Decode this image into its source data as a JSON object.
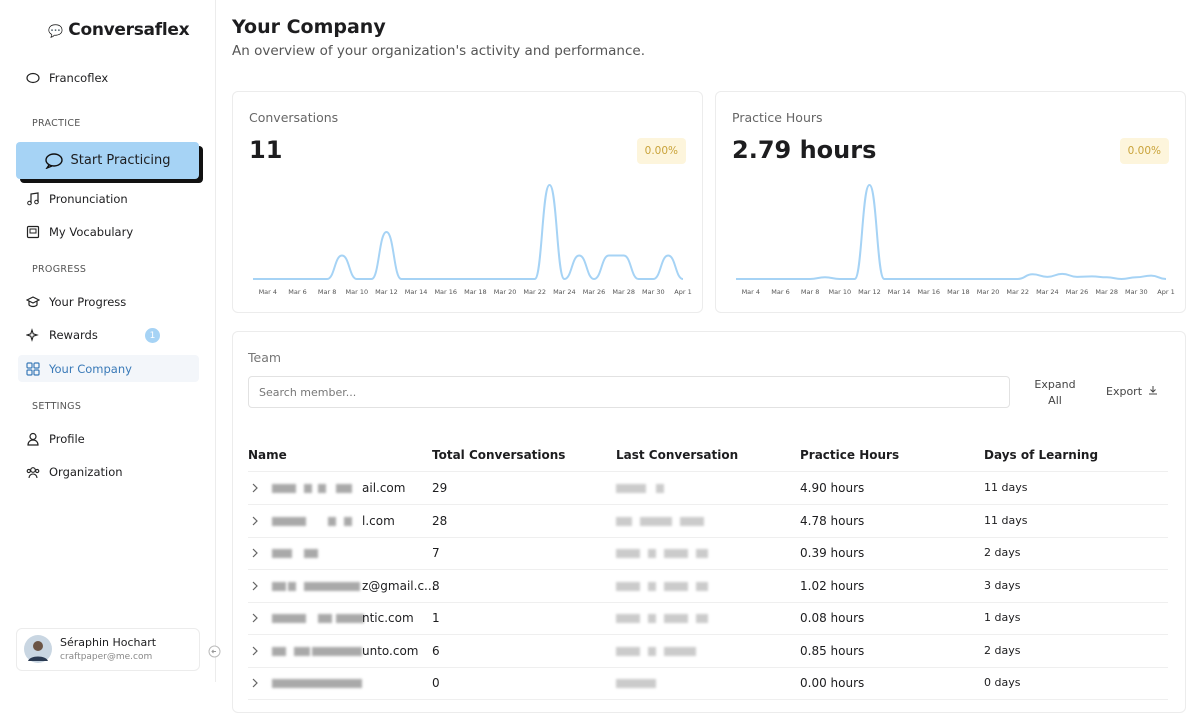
{
  "sidebar": {
    "brand": "Conversaflex",
    "workspace": "Francoflex",
    "practice_title": "PRACTICE",
    "start_button": "Start Practicing",
    "pronunciation": "Pronunciation",
    "vocabulary": "My Vocabulary",
    "progress_title": "PROGRESS",
    "your_progress": "Your Progress",
    "rewards": "Rewards",
    "rewards_badge": "1",
    "company": "Your Company",
    "settings_title": "SETTINGS",
    "profile": "Profile",
    "organization": "Organization",
    "user": {
      "name": "Séraphin Hochart",
      "email": "craftpaper@me.com"
    }
  },
  "header": {
    "title": "Your Company",
    "subtitle": "An overview of your organization's activity and performance."
  },
  "chart_data": [
    {
      "type": "line",
      "title": "Conversations",
      "total": "11",
      "change": "0.00%",
      "color": "#a6d3f5",
      "categories": [
        null,
        "Mar 4",
        null,
        "Mar 6",
        null,
        "Mar 8",
        null,
        "Mar 10",
        null,
        "Mar 12",
        null,
        "Mar 14",
        null,
        "Mar 16",
        null,
        "Mar 18",
        null,
        "Mar 20",
        null,
        "Mar 22",
        null,
        "Mar 24",
        null,
        "Mar 26",
        null,
        "Mar 28",
        null,
        "Mar 30",
        null,
        "Apr 1"
      ],
      "values": [
        0,
        0,
        0,
        0,
        0,
        0,
        1,
        0,
        0,
        2,
        0,
        0,
        0,
        0,
        0,
        0,
        0,
        0,
        0,
        0,
        4,
        0,
        1,
        0,
        1,
        1,
        0,
        0,
        1,
        0
      ]
    },
    {
      "type": "line",
      "title": "Practice Hours",
      "total": "2.79 hours",
      "change": "0.00%",
      "color": "#a6d3f5",
      "categories": [
        null,
        "Mar 4",
        null,
        "Mar 6",
        null,
        "Mar 8",
        null,
        "Mar 10",
        null,
        "Mar 12",
        null,
        "Mar 14",
        null,
        "Mar 16",
        null,
        "Mar 18",
        null,
        "Mar 20",
        null,
        "Mar 22",
        null,
        "Mar 24",
        null,
        "Mar 26",
        null,
        "Mar 28",
        null,
        "Mar 30",
        null,
        "Apr 1"
      ],
      "values": [
        0,
        0,
        0,
        0,
        0,
        0,
        0.04,
        0,
        0,
        2.2,
        0,
        0,
        0,
        0,
        0,
        0,
        0,
        0,
        0,
        0,
        0.11,
        0.05,
        0.12,
        0.05,
        0.06,
        0.04,
        0,
        0.04,
        0.08,
        0
      ]
    }
  ],
  "team": {
    "title": "Team",
    "search_placeholder": "Search member...",
    "expand": "Expand All",
    "export": "Export",
    "columns": [
      "Name",
      "Total Conversations",
      "Last Conversation",
      "Practice Hours",
      "Days of Learning"
    ],
    "rows": [
      {
        "email": "ail.com",
        "total": "29",
        "hours": "4.90 hours",
        "days": "11 days"
      },
      {
        "email": "l.com",
        "total": "28",
        "hours": "4.78 hours",
        "days": "11 days"
      },
      {
        "total": "7",
        "hours": "0.39 hours",
        "days": "2 days"
      },
      {
        "email": "z@gmail.c...",
        "total": "8",
        "hours": "1.02 hours",
        "days": "3 days"
      },
      {
        "email": "ntic.com",
        "total": "1",
        "hours": "0.08 hours",
        "days": "1 days"
      },
      {
        "email": "unto.com",
        "total": "6",
        "hours": "0.85 hours",
        "days": "2 days"
      },
      {
        "total": "0",
        "hours": "0.00 hours",
        "days": "0 days"
      }
    ]
  }
}
